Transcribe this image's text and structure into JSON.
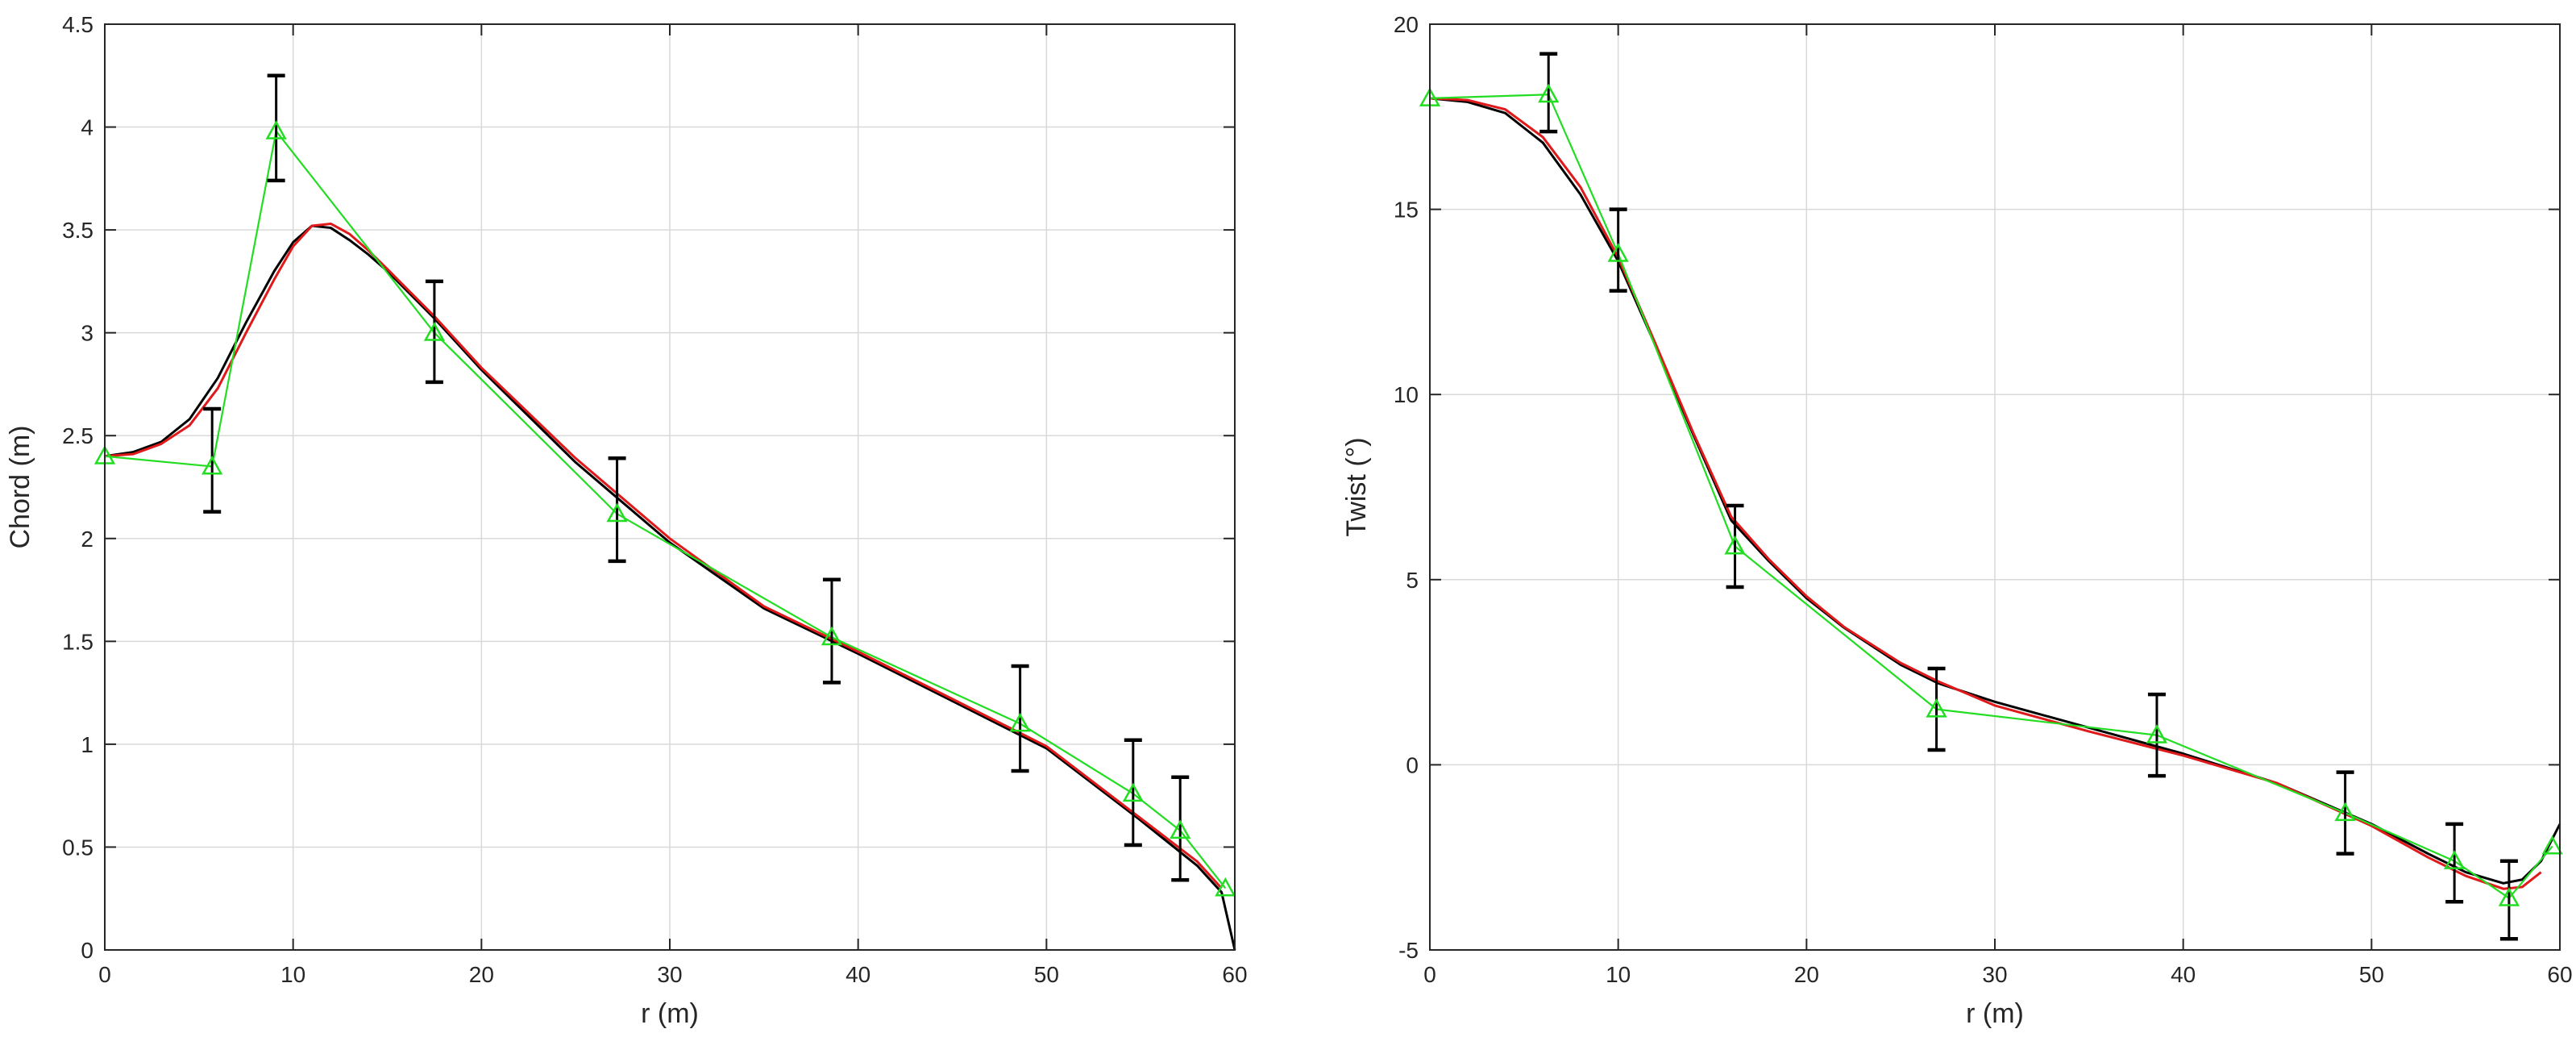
{
  "chart_data": [
    {
      "type": "line",
      "xlabel": "r (m)",
      "ylabel": "Chord (m)",
      "xlim": [
        0,
        60
      ],
      "ylim": [
        0,
        4.5
      ],
      "xticks": [
        0,
        10,
        20,
        30,
        40,
        50,
        60
      ],
      "yticks": [
        0,
        0.5,
        1,
        1.5,
        2,
        2.5,
        3,
        3.5,
        4,
        4.5
      ],
      "yticks_labels": [
        "0",
        "0.5",
        "1",
        "1.5",
        "2",
        "2.5",
        "3",
        "3.5",
        "4",
        "4.5"
      ],
      "grid": true,
      "series": [
        {
          "color": "#000000",
          "marker": "none",
          "x": [
            0,
            1.5,
            3,
            4.5,
            6,
            7.5,
            9,
            10,
            11,
            12,
            13,
            14,
            15,
            17.5,
            20,
            25,
            30,
            35,
            40,
            45,
            50,
            55,
            58,
            59.3,
            60
          ],
          "y": [
            2.4,
            2.42,
            2.47,
            2.58,
            2.78,
            3.05,
            3.3,
            3.44,
            3.52,
            3.51,
            3.45,
            3.38,
            3.3,
            3.07,
            2.82,
            2.37,
            1.98,
            1.66,
            1.44,
            1.21,
            0.98,
            0.63,
            0.41,
            0.28,
            0.0
          ]
        },
        {
          "color": "#e0191b",
          "marker": "none",
          "x": [
            0,
            1.5,
            3,
            4.5,
            6,
            7.5,
            9,
            10,
            11,
            12,
            13,
            14,
            15,
            17.5,
            20,
            25,
            30,
            35,
            40,
            45,
            50,
            55,
            58,
            59.3
          ],
          "y": [
            2.4,
            2.41,
            2.46,
            2.55,
            2.73,
            3.0,
            3.26,
            3.42,
            3.52,
            3.53,
            3.48,
            3.4,
            3.31,
            3.08,
            2.83,
            2.39,
            2.0,
            1.67,
            1.45,
            1.22,
            0.99,
            0.64,
            0.43,
            0.3
          ]
        },
        {
          "color": "#22dd22",
          "marker": "triangle",
          "x": [
            0,
            5.7,
            9.1,
            17.5,
            27.2,
            38.6,
            48.6,
            54.6,
            57.1,
            59.5
          ],
          "y": [
            2.4,
            2.35,
            3.98,
            3.0,
            2.12,
            1.52,
            1.1,
            0.76,
            0.58,
            0.3
          ]
        }
      ],
      "error_bars": {
        "color": "#000000",
        "x": [
          5.7,
          9.1,
          17.5,
          27.2,
          38.6,
          48.6,
          54.6,
          57.1
        ],
        "low": [
          2.13,
          3.74,
          2.76,
          1.89,
          1.3,
          0.87,
          0.51,
          0.34
        ],
        "high": [
          2.63,
          4.25,
          3.25,
          2.39,
          1.8,
          1.38,
          1.02,
          0.84
        ]
      }
    },
    {
      "type": "line",
      "xlabel": "r (m)",
      "ylabel": "Twist (°)",
      "xlim": [
        0,
        60
      ],
      "ylim": [
        -5,
        20
      ],
      "xticks": [
        0,
        10,
        20,
        30,
        40,
        50,
        60
      ],
      "yticks": [
        -5,
        0,
        5,
        10,
        15,
        20
      ],
      "yticks_labels": [
        "-5",
        "0",
        "5",
        "10",
        "15",
        "20"
      ],
      "grid": true,
      "series": [
        {
          "color": "#000000",
          "marker": "none",
          "x": [
            0,
            2,
            4,
            6,
            8,
            10,
            12,
            14,
            16,
            18,
            20,
            22,
            25,
            27,
            30,
            35,
            40,
            45,
            50,
            53,
            55,
            57,
            58,
            59,
            60
          ],
          "y": [
            18.0,
            17.9,
            17.6,
            16.8,
            15.4,
            13.6,
            11.3,
            8.9,
            6.6,
            5.5,
            4.5,
            3.7,
            2.7,
            2.2,
            1.7,
            1.0,
            0.3,
            -0.5,
            -1.6,
            -2.4,
            -2.9,
            -3.2,
            -3.1,
            -2.6,
            -1.6
          ]
        },
        {
          "color": "#e0191b",
          "marker": "none",
          "x": [
            0,
            2,
            4,
            6,
            8,
            10,
            12,
            14,
            16,
            18,
            20,
            22,
            25,
            27,
            30,
            35,
            40,
            45,
            50,
            53,
            55,
            57,
            58,
            59
          ],
          "y": [
            18.0,
            17.95,
            17.7,
            16.95,
            15.6,
            13.7,
            11.35,
            8.95,
            6.7,
            5.55,
            4.55,
            3.72,
            2.75,
            2.25,
            1.6,
            0.9,
            0.25,
            -0.5,
            -1.65,
            -2.5,
            -3.0,
            -3.35,
            -3.3,
            -2.9
          ]
        },
        {
          "color": "#22dd22",
          "marker": "triangle",
          "x": [
            0,
            6.3,
            10.0,
            16.2,
            26.9,
            38.6,
            48.6,
            54.4,
            57.3,
            59.6
          ],
          "y": [
            18.0,
            18.1,
            13.8,
            5.9,
            1.5,
            0.8,
            -1.3,
            -2.6,
            -3.6,
            -2.2
          ]
        }
      ],
      "error_bars": {
        "color": "#000000",
        "x": [
          6.3,
          10.0,
          16.2,
          26.9,
          38.6,
          48.6,
          54.4,
          57.3
        ],
        "low": [
          17.1,
          12.8,
          4.8,
          0.4,
          -0.3,
          -2.4,
          -3.7,
          -4.7
        ],
        "high": [
          19.2,
          15.0,
          7.0,
          2.6,
          1.9,
          -0.2,
          -1.6,
          -2.6
        ]
      }
    }
  ]
}
